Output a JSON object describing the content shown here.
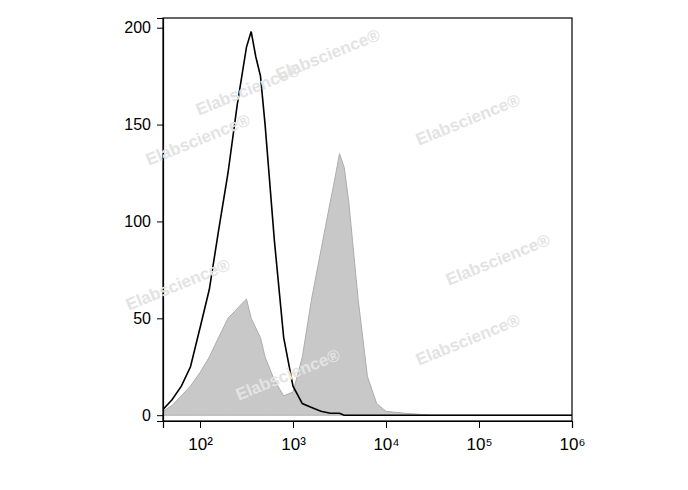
{
  "chart_data": {
    "type": "area",
    "log": "x",
    "x": [
      40,
      50,
      63,
      79,
      100,
      126,
      158,
      200,
      251,
      316,
      355,
      398,
      447,
      501,
      631,
      794,
      1000,
      1259,
      1585,
      1995,
      2512,
      2818,
      3162,
      3548,
      3981,
      5012,
      6310,
      7943,
      10000,
      15849,
      31623,
      100000,
      1000000
    ],
    "series": [
      {
        "type": "area",
        "color": "#c8c8c8",
        "values": [
          2,
          5,
          10,
          15,
          22,
          30,
          40,
          50,
          55,
          60,
          50,
          45,
          40,
          30,
          18,
          10,
          12,
          30,
          60,
          85,
          110,
          122,
          135,
          128,
          110,
          60,
          20,
          6,
          2,
          1,
          0,
          0,
          0
        ]
      },
      {
        "type": "line",
        "color": "#000000",
        "values": [
          3,
          8,
          15,
          25,
          45,
          65,
          95,
          125,
          160,
          190,
          198,
          185,
          175,
          150,
          90,
          40,
          15,
          6,
          4,
          2,
          1,
          1,
          1,
          0,
          0,
          0,
          0,
          0,
          0,
          0,
          0,
          0,
          0
        ]
      }
    ],
    "xlim": [
      40,
      1000000
    ],
    "xticks": [
      {
        "value": 100,
        "label": "10²"
      },
      {
        "value": 1000,
        "label": "10³"
      },
      {
        "value": 10000,
        "label": "10⁴"
      },
      {
        "value": 100000,
        "label": "10⁵"
      },
      {
        "value": 1000000,
        "label": "10⁶"
      }
    ],
    "ylim": [
      -3,
      205
    ],
    "yticks": [
      0,
      50,
      100,
      150,
      200
    ],
    "grid": false,
    "annotations": [
      "Elabscience®",
      "Elabscience®",
      "Elabscience®",
      "Elabscience®",
      "Elabscience®",
      "Elabscience®",
      "Elabscience®",
      "Elabscience®"
    ]
  }
}
